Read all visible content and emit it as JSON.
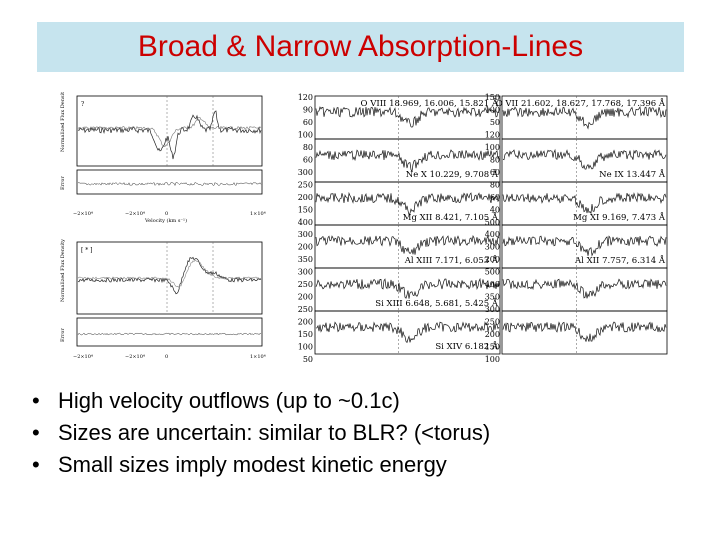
{
  "slide": {
    "title": "Broad & Narrow Absorption-Lines",
    "accent_color": "#cc0000",
    "title_bg": "#c6e4ee"
  },
  "left_figure": {
    "top_panel_tag": "?",
    "bottom_panel_tag": "[ * ]",
    "y_label_flux": "Normalized Flux Density",
    "y_label_error": "Error",
    "x_label": "Velocity (km s⁻¹)",
    "x_ticks_left": "−2×10⁴",
    "x_ticks_mid_left": "−2×10⁴",
    "x_ticks_mid": "0",
    "x_ticks_right": "1×10⁴"
  },
  "right_figure": {
    "left_y_ticks": [
      "120",
      "90",
      "60",
      "100",
      "80",
      "60",
      "300",
      "250",
      "200",
      "150",
      "400",
      "300",
      "200",
      "350",
      "300",
      "250",
      "200",
      "250",
      "200",
      "150",
      "100",
      "50"
    ],
    "right_y_ticks": [
      "150",
      "100",
      "50",
      "120",
      "100",
      "80",
      "60",
      "80",
      "60",
      "40",
      "500",
      "400",
      "300",
      "200",
      "500",
      "400",
      "350",
      "300",
      "250",
      "200",
      "150",
      "100"
    ],
    "left_labels": [
      "O VIII 18.969, 16.006, 15.821 Å",
      "Ne X 10.229, 9.708 Å",
      "Mg XII 8.421, 7.105 Å",
      "Al XIII 7.171, 6.053 Å",
      "Si XIII 6.648, 5.681, 5.425 Å",
      "Si XIV 6.182 Å"
    ],
    "right_labels": [
      "O VII 21.602, 18.627, 17.768, 17.396 Å",
      "Ne IX 13.447 Å",
      "Mg XI 9.169, 7.473 Å",
      "Al XII 7.757, 6.314 Å"
    ]
  },
  "bullets": [
    "High velocity outflows (up to ~0.1c)",
    "Sizes are uncertain: similar to BLR? (<torus)",
    "Small sizes imply modest kinetic energy"
  ]
}
